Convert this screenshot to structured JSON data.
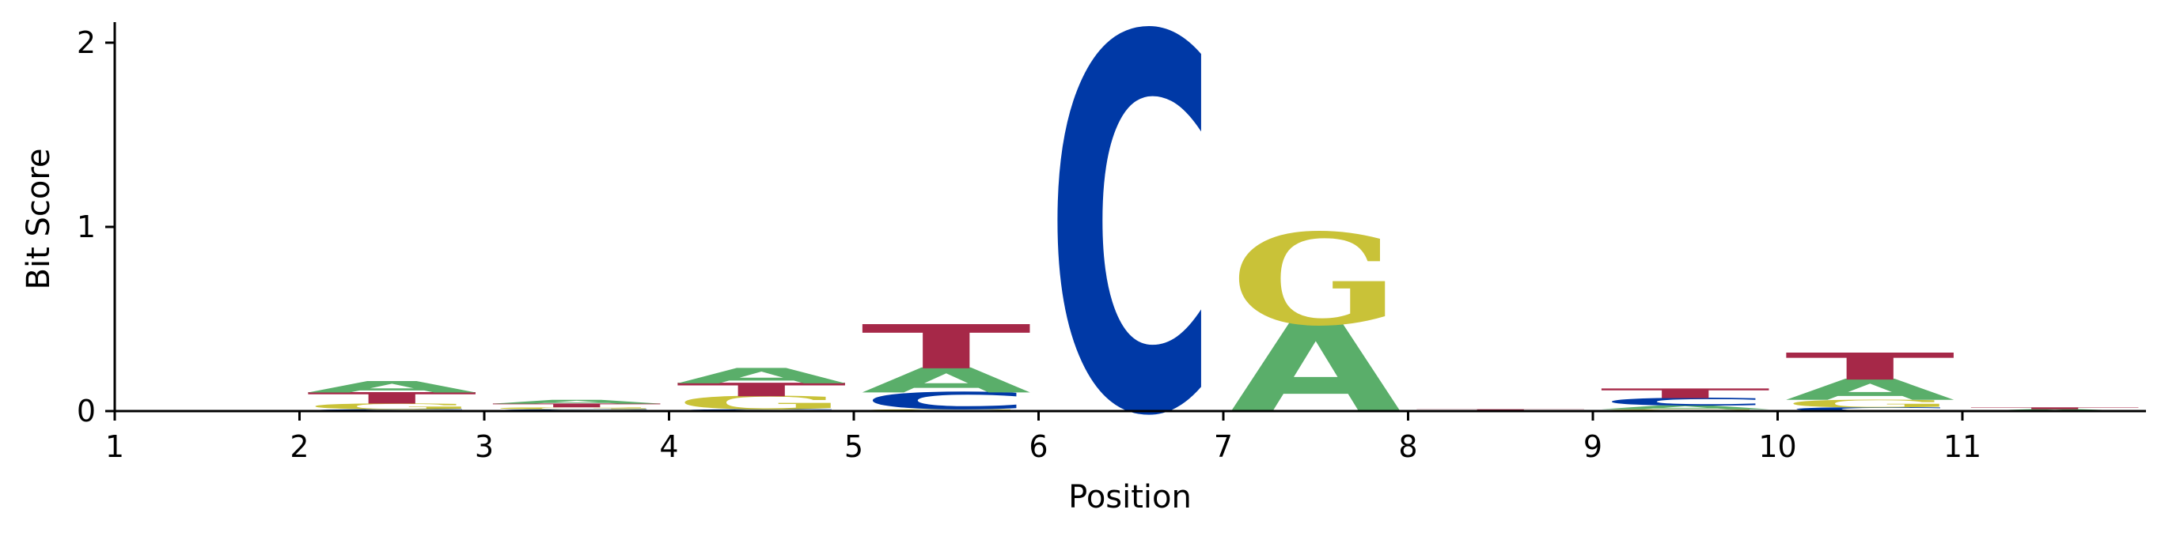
{
  "chart_data": {
    "type": "sequence-logo",
    "xlabel": "Position",
    "ylabel": "Bit Score",
    "xticks": [
      "1",
      "2",
      "3",
      "4",
      "5",
      "6",
      "7",
      "8",
      "9",
      "10",
      "11"
    ],
    "yticks": [
      "0",
      "1",
      "2"
    ],
    "xlim": [
      1,
      12
    ],
    "ylim": [
      0,
      2.1
    ],
    "colors": {
      "A": "#5aae6a",
      "C": "#0039a6",
      "G": "#c9c238",
      "T": "#a62848"
    },
    "positions": [
      {
        "x": 2.5,
        "stack": [
          {
            "letter": "C",
            "height": 0.01
          },
          {
            "letter": "G",
            "height": 0.03
          },
          {
            "letter": "T",
            "height": 0.06
          },
          {
            "letter": "A",
            "height": 0.06
          }
        ]
      },
      {
        "x": 3.5,
        "stack": [
          {
            "letter": "C",
            "height": 0.01
          },
          {
            "letter": "G",
            "height": 0.01
          },
          {
            "letter": "T",
            "height": 0.02
          },
          {
            "letter": "A",
            "height": 0.02
          }
        ]
      },
      {
        "x": 4.5,
        "stack": [
          {
            "letter": "C",
            "height": 0.01
          },
          {
            "letter": "G",
            "height": 0.07
          },
          {
            "letter": "T",
            "height": 0.07
          },
          {
            "letter": "A",
            "height": 0.08
          }
        ]
      },
      {
        "x": 5.5,
        "stack": [
          {
            "letter": "G",
            "height": 0.01
          },
          {
            "letter": "C",
            "height": 0.09
          },
          {
            "letter": "A",
            "height": 0.13
          },
          {
            "letter": "T",
            "height": 0.23
          }
        ]
      },
      {
        "x": 6.5,
        "stack": [
          {
            "letter": "C",
            "height": 1.95
          }
        ]
      },
      {
        "x": 7.5,
        "stack": [
          {
            "letter": "A",
            "height": 0.47
          },
          {
            "letter": "G",
            "height": 0.48
          }
        ]
      },
      {
        "x": 8.5,
        "stack": [
          {
            "letter": "A",
            "height": 0.005
          },
          {
            "letter": "T",
            "height": 0.005
          }
        ]
      },
      {
        "x": 9.5,
        "stack": [
          {
            "letter": "G",
            "height": 0.01
          },
          {
            "letter": "A",
            "height": 0.02
          },
          {
            "letter": "C",
            "height": 0.04
          },
          {
            "letter": "T",
            "height": 0.05
          }
        ]
      },
      {
        "x": 10.5,
        "stack": [
          {
            "letter": "C",
            "height": 0.02
          },
          {
            "letter": "G",
            "height": 0.04
          },
          {
            "letter": "A",
            "height": 0.11
          },
          {
            "letter": "T",
            "height": 0.14
          }
        ]
      },
      {
        "x": 11.5,
        "stack": [
          {
            "letter": "A",
            "height": 0.01
          },
          {
            "letter": "T",
            "height": 0.01
          }
        ]
      }
    ]
  }
}
